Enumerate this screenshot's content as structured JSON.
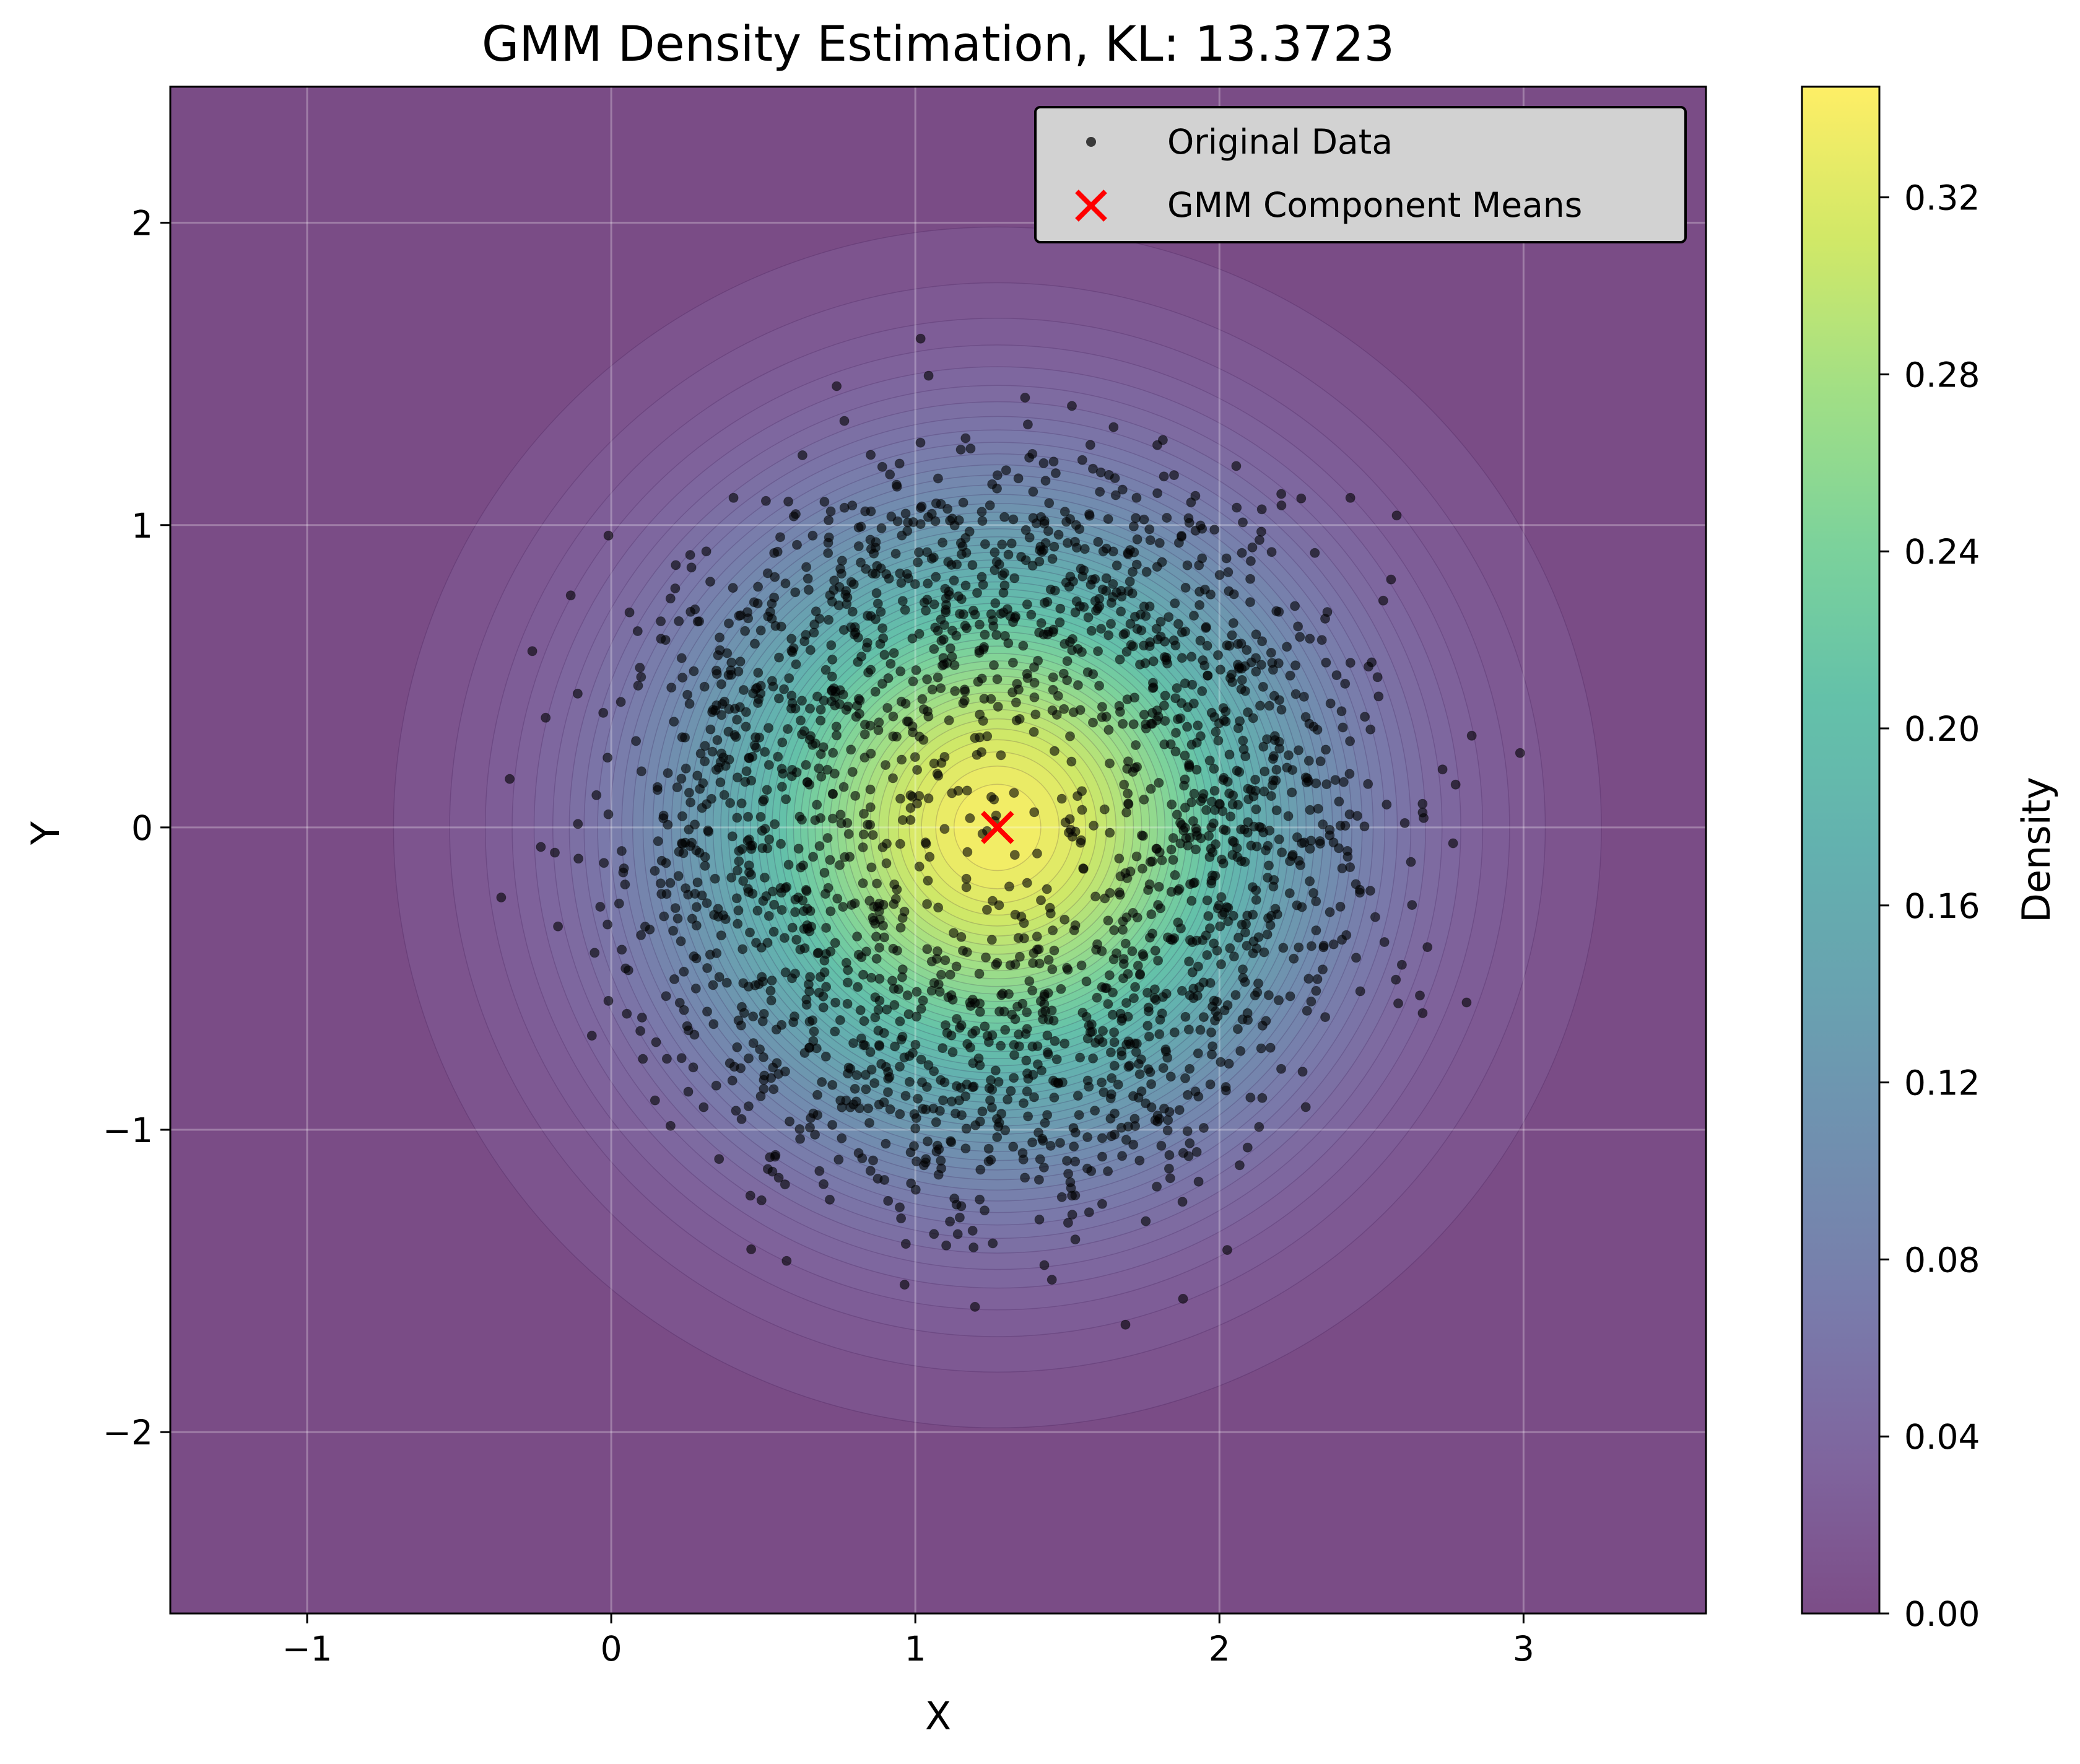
{
  "chart_data": {
    "type": "contourf+scatter",
    "title": "GMM Density Estimation, KL: 13.3723",
    "xlabel": "X",
    "ylabel": "Y",
    "xlim": [
      -1.45,
      3.6
    ],
    "ylim": [
      -2.6,
      2.45
    ],
    "xticks": [
      -1,
      0,
      1,
      2,
      3
    ],
    "yticks": [
      -2,
      -1,
      0,
      1,
      2
    ],
    "xtick_labels": [
      "−1",
      "0",
      "1",
      "2",
      "3"
    ],
    "ytick_labels": [
      "−2",
      "−1",
      "0",
      "1",
      "2"
    ],
    "grid": true,
    "legend": {
      "placement": "upper-right",
      "entries": [
        {
          "label": "Original Data",
          "marker": "dot",
          "color": "#000000"
        },
        {
          "label": "GMM Component Means",
          "marker": "x",
          "color": "#ff0000"
        }
      ]
    },
    "density": {
      "colormap": "viridis",
      "alpha": 0.7,
      "levels": 50,
      "components": [
        {
          "mean": [
            1.27,
            0.0
          ],
          "std": [
            0.71,
            0.71
          ],
          "peak": 0.34
        }
      ]
    },
    "means": [
      [
        1.27,
        0.0
      ]
    ],
    "scatter": {
      "name": "Original Data",
      "n_points": 2200,
      "distribution": "ring",
      "center": [
        1.27,
        0.0
      ],
      "radius_mean": 0.88,
      "radius_std": 0.28,
      "color": "#000000",
      "alpha": 0.6
    },
    "colorbar": {
      "label": "Density",
      "min": 0.0,
      "max": 0.345,
      "ticks": [
        0.0,
        0.04,
        0.08,
        0.12,
        0.16,
        0.2,
        0.24,
        0.28,
        0.32
      ],
      "tick_labels": [
        "0.00",
        "0.04",
        "0.08",
        "0.12",
        "0.16",
        "0.20",
        "0.24",
        "0.28",
        "0.32"
      ]
    }
  }
}
